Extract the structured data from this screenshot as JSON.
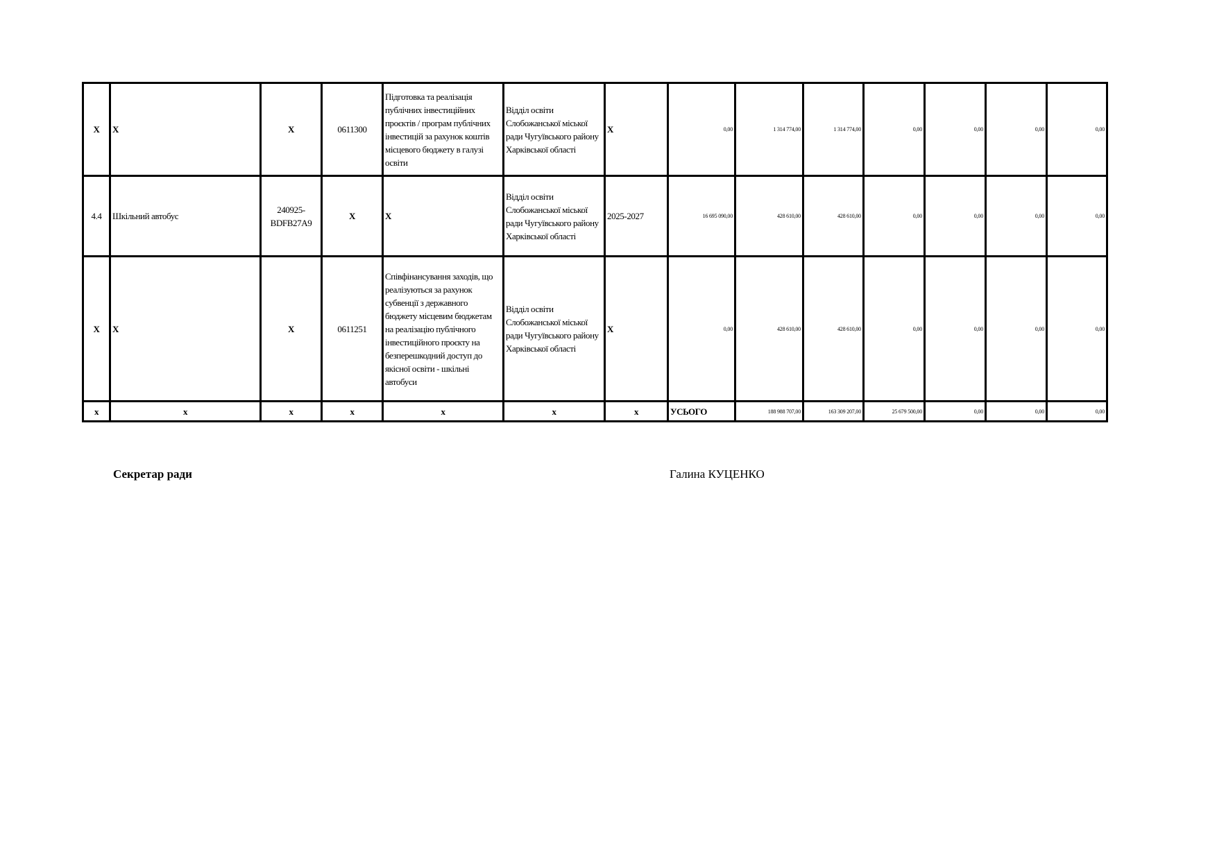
{
  "table": {
    "rows": [
      {
        "no": "Х",
        "name": "Х",
        "code": "Х",
        "kpkv": "0611300",
        "program": "Підготовка та реалізація публічних інвестиційних проєктів / програм публічних інвестицій за рахунок коштів місцевого бюджету в галузі освіти",
        "executor": "Відділ освіти Слобожанської міської ради Чугуївського району Харківської області",
        "period": "Х",
        "values": [
          "0,00",
          "1 314 774,00",
          "1 314 774,00",
          "0,00",
          "0,00",
          "0,00",
          "0,00"
        ]
      },
      {
        "no": "4.4",
        "name": "Шкільний автобус",
        "code": "240925-BDFB27A9",
        "kpkv": "Х",
        "program": "Х",
        "executor": "Відділ освіти Слобожанської міської ради Чугуївського району Харківської області",
        "period": "2025-2027",
        "values": [
          "16 695 090,00",
          "428 610,00",
          "428 610,00",
          "0,00",
          "0,00",
          "0,00",
          "0,00"
        ]
      },
      {
        "no": "Х",
        "name": "Х",
        "code": "Х",
        "kpkv": "0611251",
        "program": "Співфінансування заходів, що реалізуються за рахунок субвенції з державного бюджету місцевим бюджетам на реалізацію публічного інвестиційного проєкту на безперешкодний доступ до якісної освіти - шкільні автобуси",
        "executor": "Відділ освіти Слобожанської міської ради Чугуївського району Харківської області",
        "period": "Х",
        "values": [
          "0,00",
          "428 610,00",
          "428 610,00",
          "0,00",
          "0,00",
          "0,00",
          "0,00"
        ]
      }
    ],
    "total": {
      "cells": [
        "х",
        "х",
        "х",
        "х",
        "х",
        "х",
        "х"
      ],
      "label": "УСЬОГО",
      "values": [
        "188 988 707,00",
        "163 309 207,00",
        "25 679 500,00",
        "0,00",
        "0,00",
        "0,00"
      ]
    }
  },
  "signature": {
    "position": "Секретар ради",
    "name": "Галина КУЦЕНКО"
  }
}
